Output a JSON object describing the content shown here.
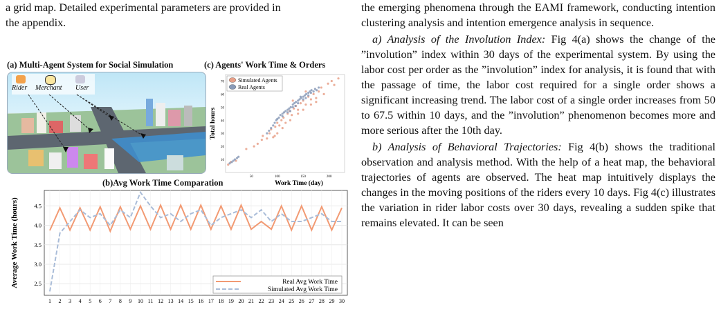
{
  "left_text": {
    "line1": "a grid map. Detailed experimental parameters are provided in",
    "line2": "the appendix."
  },
  "figure": {
    "panel_a": {
      "title": "(a) Multi-Agent System for Social Simulation",
      "legend_labels": [
        "Rider",
        "Merchant",
        "User"
      ]
    },
    "panel_c": {
      "title": "(c)  Agents' Work Time & Orders",
      "xlabel": "Work Time (day)",
      "ylabel": "Total hours",
      "legend": [
        "Simulated Agents",
        "Real Agents"
      ],
      "colors": {
        "simulated": "#e8a088",
        "real": "#8a9bb8"
      }
    },
    "panel_b": {
      "title": "(b)Avg Work Time Comparation",
      "ylabel": "Average Work Time (hours)",
      "legend": [
        "Real Avg Work Time",
        "Simulated Avg Work Time"
      ],
      "colors": {
        "real": "#f29a73",
        "simulated": "#a9bcd8"
      }
    }
  },
  "chart_data": [
    {
      "type": "line",
      "title": "(b)Avg Work Time Comparation",
      "xlabel": "",
      "ylabel": "Average Work Time (hours)",
      "x": [
        1,
        2,
        3,
        4,
        5,
        6,
        7,
        8,
        9,
        10,
        11,
        12,
        13,
        14,
        15,
        16,
        17,
        18,
        19,
        20,
        21,
        22,
        23,
        24,
        25,
        26,
        27,
        28,
        29,
        30
      ],
      "yticks": [
        "2.5",
        "3.0",
        "3.5",
        "4.0",
        "4.5"
      ],
      "ylim": [
        2.2,
        4.9
      ],
      "series": [
        {
          "name": "Real Avg Work Time",
          "values": [
            3.87,
            4.45,
            3.88,
            4.45,
            3.88,
            4.48,
            3.85,
            4.48,
            3.9,
            4.5,
            3.9,
            4.52,
            3.9,
            4.52,
            3.9,
            4.52,
            3.9,
            4.5,
            3.9,
            4.52,
            3.9,
            4.1,
            3.9,
            4.5,
            3.88,
            4.5,
            3.88,
            4.48,
            3.88,
            4.45
          ]
        },
        {
          "name": "Simulated Avg Work Time",
          "values": [
            2.3,
            3.8,
            4.1,
            4.4,
            4.2,
            4.3,
            4.0,
            4.4,
            4.2,
            4.85,
            4.5,
            4.2,
            4.3,
            4.1,
            4.3,
            4.4,
            4.0,
            4.2,
            4.3,
            4.4,
            4.2,
            4.4,
            4.1,
            4.3,
            4.1,
            4.1,
            4.2,
            4.3,
            4.1,
            4.1
          ]
        }
      ],
      "legend_position": "bottom-right",
      "grid": true
    },
    {
      "type": "scatter",
      "title": "(c)  Agents' Work Time & Orders",
      "xlabel": "Work Time (day)",
      "ylabel": "Total hours",
      "xticks": [
        "50",
        "100",
        "150",
        "200"
      ],
      "yticks": [
        "10",
        "20",
        "30",
        "40",
        "50",
        "60",
        "70"
      ],
      "xlim": [
        0,
        230
      ],
      "ylim": [
        0,
        75
      ],
      "series": [
        {
          "name": "Simulated Agents",
          "points": [
            [
              5,
              6
            ],
            [
              10,
              8
            ],
            [
              20,
              9
            ],
            [
              40,
              18
            ],
            [
              55,
              20
            ],
            [
              62,
              22
            ],
            [
              70,
              25
            ],
            [
              72,
              28
            ],
            [
              80,
              26
            ],
            [
              85,
              30
            ],
            [
              88,
              33
            ],
            [
              92,
              27
            ],
            [
              96,
              35
            ],
            [
              100,
              38
            ],
            [
              104,
              36
            ],
            [
              108,
              40
            ],
            [
              112,
              42
            ],
            [
              116,
              38
            ],
            [
              120,
              45
            ],
            [
              124,
              47
            ],
            [
              128,
              44
            ],
            [
              132,
              49
            ],
            [
              136,
              51
            ],
            [
              140,
              48
            ],
            [
              145,
              53
            ],
            [
              150,
              55
            ],
            [
              155,
              52
            ],
            [
              160,
              58
            ],
            [
              165,
              56
            ],
            [
              170,
              60
            ],
            [
              175,
              57
            ],
            [
              180,
              62
            ],
            [
              185,
              65
            ],
            [
              190,
              60
            ],
            [
              198,
              68
            ],
            [
              205,
              70
            ],
            [
              210,
              67
            ],
            [
              218,
              72
            ],
            [
              100,
              30
            ],
            [
              110,
              34
            ],
            [
              125,
              40
            ],
            [
              140,
              45
            ],
            [
              150,
              48
            ],
            [
              165,
              52
            ],
            [
              175,
              54
            ],
            [
              95,
              28
            ],
            [
              130,
              55
            ],
            [
              155,
              62
            ]
          ]
        },
        {
          "name": "Real Agents",
          "points": [
            [
              8,
              7
            ],
            [
              12,
              8
            ],
            [
              15,
              9
            ],
            [
              18,
              10
            ],
            [
              22,
              11
            ],
            [
              25,
              12
            ],
            [
              80,
              30
            ],
            [
              84,
              32
            ],
            [
              88,
              34
            ],
            [
              92,
              36
            ],
            [
              95,
              38
            ],
            [
              98,
              40
            ],
            [
              100,
              41
            ],
            [
              103,
              42
            ],
            [
              106,
              44
            ],
            [
              110,
              45
            ],
            [
              113,
              46
            ],
            [
              116,
              47
            ],
            [
              120,
              48
            ],
            [
              123,
              49
            ],
            [
              126,
              50
            ],
            [
              130,
              52
            ],
            [
              133,
              53
            ],
            [
              136,
              54
            ],
            [
              140,
              55
            ],
            [
              143,
              56
            ],
            [
              146,
              57
            ],
            [
              150,
              58
            ],
            [
              153,
              59
            ],
            [
              156,
              60
            ],
            [
              160,
              61
            ],
            [
              163,
              62
            ],
            [
              166,
              63
            ],
            [
              170,
              62
            ],
            [
              173,
              64
            ],
            [
              176,
              63
            ],
            [
              180,
              65
            ],
            [
              110,
              43
            ],
            [
              120,
              46
            ],
            [
              130,
              50
            ],
            [
              140,
              53
            ],
            [
              150,
              56
            ],
            [
              160,
              59
            ],
            [
              135,
              51
            ],
            [
              145,
              58
            ],
            [
              155,
              57
            ],
            [
              165,
              61
            ],
            [
              125,
              47
            ]
          ]
        }
      ],
      "legend_position": "top-left",
      "grid": false
    }
  ],
  "right_text": {
    "intro": "the emerging phenomena through the EAMI framework, conducting intention clustering analysis and intention emergence analysis in sequence.",
    "para_a_head": "a) Analysis of the Involution Index:",
    "para_a_body": " Fig 4(a) shows the change of the ”involution” index within 30 days of the experimental system. By using the labor cost per order as the ”involution” index for analysis, it is found that with the passage of time, the labor cost required for a single order shows a significant increasing trend. The labor cost of a single order increases from 50 to 67.5 within 10 days, and the ”involution” phenomenon becomes more and more serious after the 10th day.",
    "para_b_head": "b) Analysis of Behavioral Trajectories:",
    "para_b_body": " Fig 4(b) shows the traditional observation and analysis method. With the help of a heat map, the behavioral trajectories of agents are observed. The heat map intuitively displays the changes in the moving positions of the riders every 10 days. Fig 4(c) illustrates the variation in rider labor costs over 30 days, revealing a sudden spike that remains elevated. It can be seen"
  }
}
